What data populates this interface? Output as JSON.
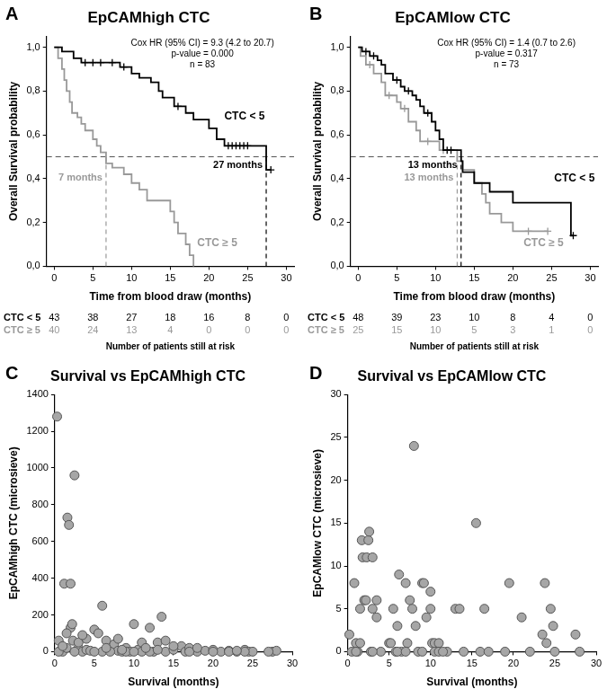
{
  "chart_data": [
    {
      "panel": "A",
      "type": "line",
      "title": "EpCAMhigh CTC",
      "x_label": "Time from blood draw (months)",
      "y_label": "Overall Survival probability",
      "xlim": [
        -1,
        31
      ],
      "xticks": [
        0,
        5,
        10,
        15,
        20,
        25,
        30
      ],
      "ylim": [
        0,
        1.05
      ],
      "yticks": [
        {
          "value": 0,
          "label": "0,0"
        },
        {
          "value": 0.2,
          "label": "0,2"
        },
        {
          "value": 0.4,
          "label": "0,4"
        },
        {
          "value": 0.6,
          "label": "0,6"
        },
        {
          "value": 0.8,
          "label": "0,8"
        },
        {
          "value": 1,
          "label": "1,0"
        }
      ],
      "grid": false,
      "legend": "none",
      "annotations": [
        "Cox HR (95% CI) = 9.3 (4.2 to 20.7)",
        "p-value = 0.000",
        "n = 83"
      ],
      "median_level": 0.5,
      "at_risk_title": "Number of patients still at risk",
      "at_risk_x": [
        0,
        5,
        10,
        15,
        20,
        25,
        30
      ],
      "series": [
        {
          "name": "CTC < 5",
          "color": "#000000",
          "line_style": "step",
          "marker": "cross",
          "x": [
            0,
            1,
            2.5,
            3.5,
            8.5,
            10,
            11,
            12.5,
            13.5,
            14,
            15.5,
            17,
            18,
            20,
            21,
            22,
            27.4,
            28
          ],
          "values": [
            1,
            0.98,
            0.95,
            0.93,
            0.91,
            0.88,
            0.86,
            0.84,
            0.8,
            0.77,
            0.73,
            0.7,
            0.67,
            0.63,
            0.58,
            0.55,
            0.44,
            0.44
          ],
          "censored_x": [
            4,
            5,
            6,
            7.5,
            9,
            16,
            22.5,
            23,
            23.5,
            24,
            24.5,
            25,
            28
          ],
          "censored_values": [
            0.93,
            0.93,
            0.93,
            0.93,
            0.91,
            0.73,
            0.55,
            0.55,
            0.55,
            0.55,
            0.55,
            0.55,
            0.44
          ],
          "median": 27.4,
          "median_label": "27 months",
          "at_risk": [
            43,
            38,
            27,
            18,
            16,
            8,
            0
          ]
        },
        {
          "name": "CTC ≥ 5",
          "color": "#999999",
          "line_style": "step",
          "marker": "cross",
          "x": [
            0,
            0.5,
            1,
            1.3,
            1.6,
            2,
            2.3,
            3,
            3.5,
            4,
            5,
            5.5,
            6,
            6.7,
            7.5,
            9,
            10,
            11,
            12,
            15,
            15.5,
            16,
            17,
            17.5,
            18
          ],
          "values": [
            1,
            0.95,
            0.9,
            0.85,
            0.8,
            0.75,
            0.7,
            0.68,
            0.65,
            0.62,
            0.58,
            0.55,
            0.52,
            0.47,
            0.45,
            0.42,
            0.38,
            0.35,
            0.3,
            0.25,
            0.2,
            0.15,
            0.1,
            0.05,
            0
          ],
          "median": 6.7,
          "median_label": "7 months",
          "at_risk": [
            40,
            24,
            13,
            4,
            0,
            0,
            0
          ]
        }
      ]
    },
    {
      "panel": "B",
      "type": "line",
      "title": "EpCAMlow CTC",
      "x_label": "Time from blood draw (months)",
      "y_label": "Overall Survival probability",
      "xlim": [
        -1,
        31
      ],
      "xticks": [
        0,
        5,
        10,
        15,
        20,
        25,
        30
      ],
      "ylim": [
        0,
        1.05
      ],
      "yticks": [
        {
          "value": 0,
          "label": "0,0"
        },
        {
          "value": 0.2,
          "label": "0,2"
        },
        {
          "value": 0.4,
          "label": "0,4"
        },
        {
          "value": 0.6,
          "label": "0,6"
        },
        {
          "value": 0.8,
          "label": "0,8"
        },
        {
          "value": 1,
          "label": "1,0"
        }
      ],
      "grid": false,
      "legend": "none",
      "annotations": [
        "Cox HR (95% CI) = 1.4 (0.7 to 2.6)",
        "p-value = 0.317",
        "n = 73"
      ],
      "median_level": 0.5,
      "at_risk_title": "Number of patients still at risk",
      "at_risk_x": [
        0,
        5,
        10,
        15,
        20,
        25,
        30
      ],
      "series": [
        {
          "name": "CTC < 5",
          "color": "#000000",
          "line_style": "step",
          "marker": "cross",
          "x": [
            0,
            0.5,
            1.5,
            2.5,
            3,
            3.5,
            4.5,
            5.5,
            6,
            7,
            7.5,
            8,
            8.5,
            9.5,
            10,
            10.5,
            11,
            13.3,
            13.5,
            15,
            17,
            20,
            27.5,
            27.8
          ],
          "values": [
            1,
            0.98,
            0.96,
            0.94,
            0.92,
            0.88,
            0.85,
            0.82,
            0.8,
            0.78,
            0.76,
            0.73,
            0.7,
            0.66,
            0.62,
            0.58,
            0.53,
            0.48,
            0.43,
            0.38,
            0.34,
            0.29,
            0.14,
            0.14
          ],
          "censored_x": [
            1,
            2,
            5,
            6.5,
            9,
            11.5,
            12,
            27.8
          ],
          "censored_values": [
            0.98,
            0.96,
            0.85,
            0.8,
            0.7,
            0.53,
            0.53,
            0.14
          ],
          "median": 13.3,
          "median_label": "13 months",
          "at_risk": [
            48,
            39,
            23,
            10,
            8,
            4,
            0
          ]
        },
        {
          "name": "CTC ≥ 5",
          "color": "#999999",
          "line_style": "step",
          "marker": "cross",
          "x": [
            0,
            0.3,
            1,
            2,
            3,
            3.5,
            5,
            5.5,
            6.5,
            7.5,
            8,
            10.5,
            12.8,
            13.5,
            15,
            16,
            16.5,
            17,
            18.5,
            20,
            24.5
          ],
          "values": [
            1,
            0.96,
            0.92,
            0.88,
            0.84,
            0.78,
            0.75,
            0.72,
            0.66,
            0.62,
            0.57,
            0.53,
            0.48,
            0.44,
            0.38,
            0.33,
            0.29,
            0.24,
            0.2,
            0.16,
            0.16
          ],
          "censored_x": [
            1.5,
            4,
            6,
            9,
            11,
            22,
            24.5
          ],
          "censored_values": [
            0.92,
            0.78,
            0.72,
            0.57,
            0.53,
            0.16,
            0.16
          ],
          "median": 12.8,
          "median_label": "13 months",
          "at_risk": [
            25,
            15,
            10,
            5,
            3,
            1,
            0
          ]
        }
      ]
    },
    {
      "panel": "C",
      "type": "scatter",
      "title": "Survival vs EpCAMhigh CTC",
      "x_label": "Survival (months)",
      "y_label": "EpCAMhigh CTC (microsieve)",
      "xlim": [
        0,
        30
      ],
      "xticks": [
        0,
        5,
        10,
        15,
        20,
        25,
        30
      ],
      "ylim": [
        0,
        1400
      ],
      "yticks": [
        0,
        200,
        400,
        600,
        800,
        1000,
        1200,
        1400
      ],
      "grid": false,
      "legend": "none",
      "color": "#a6a6a6",
      "marker": "circle",
      "x": [
        0.3,
        0.5,
        0.8,
        1,
        1.2,
        1.5,
        1.6,
        1.8,
        2,
        2,
        2.2,
        2.5,
        1.5,
        2.3,
        3,
        3.5,
        3,
        4,
        4.5,
        5,
        5.5,
        6,
        6,
        6.5,
        7,
        7.5,
        8,
        8.5,
        9,
        9.5,
        10,
        10.5,
        11,
        12,
        12.5,
        13,
        13.5,
        14,
        15,
        16,
        16.5,
        17,
        18,
        19,
        20,
        21,
        22,
        23,
        24,
        24.5,
        25,
        27.5,
        28,
        0.5,
        1,
        2.5,
        4,
        5,
        7,
        8,
        9,
        10,
        11,
        12,
        13,
        14,
        15,
        17,
        18,
        20,
        22,
        24,
        23,
        27,
        3.5,
        6.5,
        8.5,
        11.5
      ],
      "values": [
        1280,
        60,
        10,
        0,
        370,
        20,
        730,
        690,
        370,
        130,
        150,
        960,
        100,
        60,
        20,
        0,
        50,
        10,
        5,
        120,
        100,
        250,
        0,
        60,
        10,
        40,
        5,
        0,
        20,
        0,
        150,
        10,
        0,
        130,
        0,
        50,
        190,
        0,
        10,
        30,
        0,
        20,
        0,
        5,
        10,
        0,
        5,
        0,
        10,
        0,
        0,
        0,
        5,
        0,
        30,
        0,
        70,
        0,
        0,
        70,
        0,
        0,
        50,
        0,
        10,
        60,
        30,
        0,
        20,
        0,
        0,
        0,
        5,
        0,
        90,
        20,
        10,
        20
      ]
    },
    {
      "panel": "D",
      "type": "scatter",
      "title": "Survival vs EpCAMlow CTC",
      "x_label": "Survival (months)",
      "y_label": "EpCAMlow CTC (microsieve)",
      "xlim": [
        0,
        30
      ],
      "xticks": [
        0,
        5,
        10,
        15,
        20,
        25,
        30
      ],
      "ylim": [
        0,
        30
      ],
      "yticks": [
        0,
        5,
        10,
        15,
        20,
        25,
        30
      ],
      "grid": false,
      "legend": "none",
      "color": "#a6a6a6",
      "marker": "circle",
      "x": [
        0.2,
        0.5,
        0.8,
        1,
        1.2,
        1.5,
        1.5,
        1.7,
        1.8,
        2,
        2.2,
        2.3,
        2.5,
        2.6,
        2.8,
        3,
        3,
        3.5,
        3.5,
        4,
        5,
        5.2,
        5.5,
        5.8,
        6,
        6.2,
        6.5,
        7,
        7.2,
        7.5,
        7.8,
        8,
        8.2,
        8.5,
        9,
        9.2,
        9.5,
        10,
        10,
        10.2,
        10.5,
        10.5,
        11,
        11,
        12,
        13,
        13.5,
        14,
        15.5,
        16,
        16.5,
        17,
        19,
        19.5,
        21,
        22,
        23.5,
        23.8,
        24,
        24.5,
        24.8,
        25,
        27.5,
        28,
        1,
        9,
        3,
        6,
        7,
        11.5
      ],
      "values": [
        2,
        0,
        8,
        1,
        0,
        1,
        5,
        13,
        11,
        6,
        6,
        11,
        13,
        14,
        0,
        11,
        5,
        6,
        4,
        0,
        1,
        1,
        5,
        0,
        3,
        9,
        0,
        8,
        1,
        6,
        5,
        24,
        3,
        0,
        8,
        8,
        4,
        5,
        7,
        1,
        1,
        0,
        1,
        0,
        0,
        5,
        5,
        0,
        15,
        0,
        5,
        0,
        0,
        8,
        4,
        0,
        2,
        8,
        1,
        5,
        3,
        0,
        2,
        0,
        0,
        0,
        0,
        0,
        0,
        0
      ]
    }
  ]
}
